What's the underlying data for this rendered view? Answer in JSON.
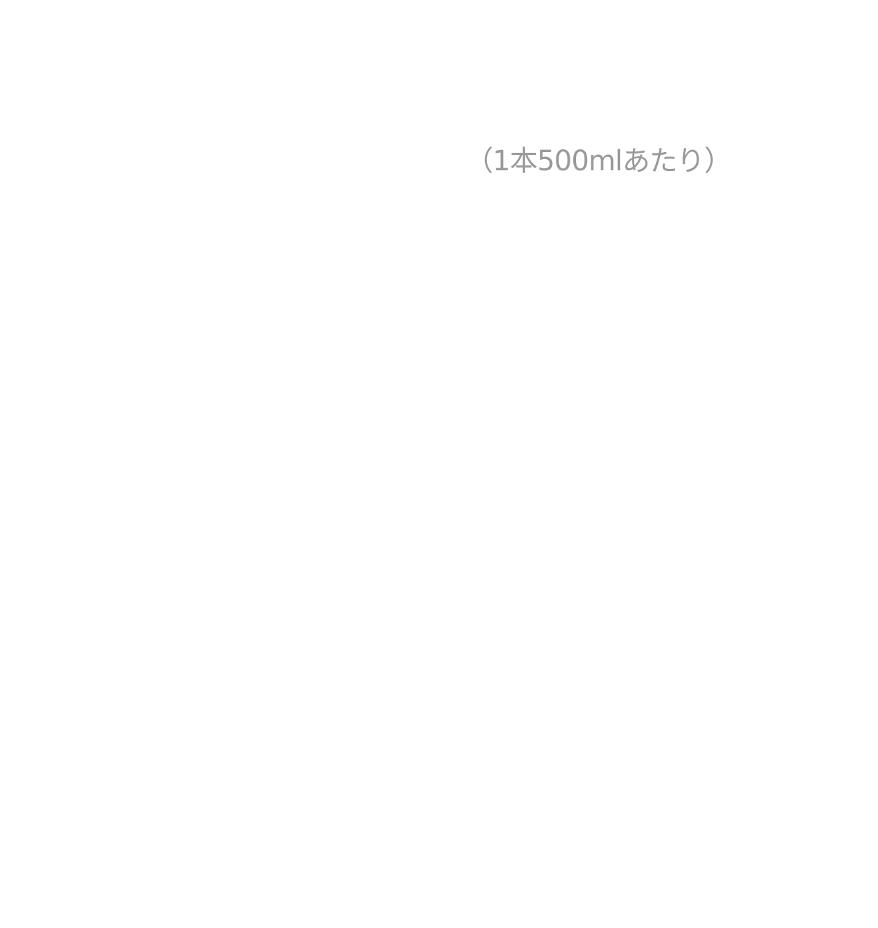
{
  "note": {
    "text": "（1本500mlあたり）",
    "color": "#9a9a9a"
  },
  "background_color": "#ffffff"
}
